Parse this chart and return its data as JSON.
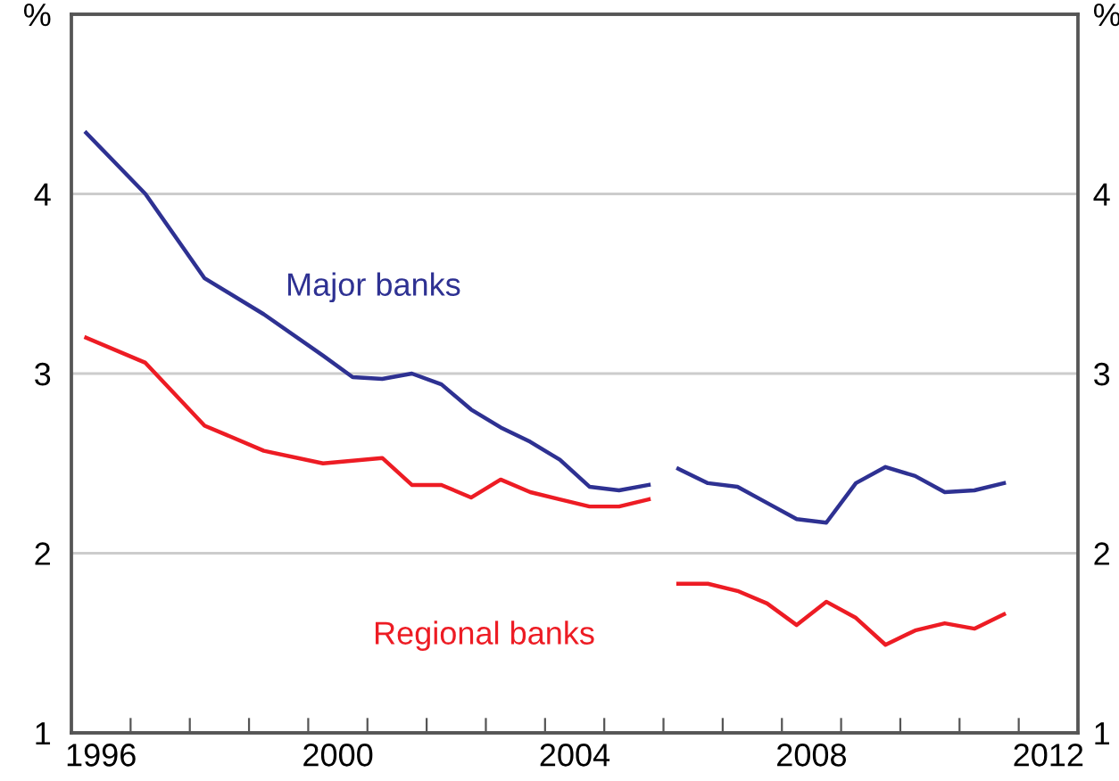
{
  "chart_data": {
    "type": "line",
    "xlim": [
      1996,
      2013
    ],
    "xticks": [
      {
        "value": 1996,
        "label": null
      },
      {
        "value": 1996.5,
        "label": "1996"
      },
      {
        "value": 1997,
        "label": null
      },
      {
        "value": 1998,
        "label": null
      },
      {
        "value": 1999,
        "label": null
      },
      {
        "value": 2000,
        "label": null
      },
      {
        "value": 2000.5,
        "label": "2000"
      },
      {
        "value": 2001,
        "label": null
      },
      {
        "value": 2002,
        "label": null
      },
      {
        "value": 2003,
        "label": null
      },
      {
        "value": 2004,
        "label": null
      },
      {
        "value": 2004.5,
        "label": "2004"
      },
      {
        "value": 2005,
        "label": null
      },
      {
        "value": 2006,
        "label": null
      },
      {
        "value": 2007,
        "label": null
      },
      {
        "value": 2008,
        "label": null
      },
      {
        "value": 2008.5,
        "label": "2008"
      },
      {
        "value": 2009,
        "label": null
      },
      {
        "value": 2010,
        "label": null
      },
      {
        "value": 2011,
        "label": null
      },
      {
        "value": 2012,
        "label": null
      },
      {
        "value": 2012.5,
        "label": "2012"
      },
      {
        "value": 2013,
        "label": null
      }
    ],
    "ylim": [
      1,
      5
    ],
    "yticks": [
      {
        "value": 1,
        "label": "1"
      },
      {
        "value": 2,
        "label": "2"
      },
      {
        "value": 3,
        "label": "3"
      },
      {
        "value": 4,
        "label": "4"
      },
      {
        "value": 5,
        "label": "%"
      }
    ],
    "y2lim": [
      1,
      5
    ],
    "y2ticks": [
      {
        "value": 1,
        "label": "1"
      },
      {
        "value": 2,
        "label": "2"
      },
      {
        "value": 3,
        "label": "3"
      },
      {
        "value": 4,
        "label": "4"
      },
      {
        "value": 5,
        "label": "%"
      }
    ],
    "grid": "y",
    "legend": false,
    "line_style": "solid",
    "marker": "none",
    "series": [
      {
        "name": "Major banks",
        "color": "#2e3192",
        "x": [
          1996.25,
          1997.25,
          1998.25,
          1999.25,
          2000.25,
          2000.75,
          2001.25,
          2001.75,
          2002.25,
          2002.75,
          2003.25,
          2003.75,
          2004.25,
          2004.75,
          2005.25,
          2005.75,
          2006.0,
          2006.25,
          2006.75,
          2007.25,
          2007.75,
          2008.25,
          2008.75,
          2009.25,
          2009.75,
          2010.25,
          2010.75,
          2011.25,
          2011.75
        ],
        "values": [
          4.34,
          4.0,
          3.53,
          3.33,
          3.1,
          2.98,
          2.97,
          3.0,
          2.94,
          2.8,
          2.7,
          2.62,
          2.52,
          2.37,
          2.35,
          2.38,
          null,
          2.47,
          2.39,
          2.37,
          2.28,
          2.19,
          2.17,
          2.39,
          2.48,
          2.43,
          2.34,
          2.35,
          2.39
        ]
      },
      {
        "name": "Regional banks",
        "color": "#ed1c24",
        "x": [
          1996.25,
          1997.25,
          1998.25,
          1999.25,
          2000.25,
          2001.25,
          2001.75,
          2002.25,
          2002.75,
          2003.25,
          2003.75,
          2004.25,
          2004.75,
          2005.25,
          2005.75,
          2006.0,
          2006.25,
          2006.75,
          2007.25,
          2007.75,
          2008.25,
          2008.75,
          2009.25,
          2009.75,
          2010.25,
          2010.75,
          2011.25,
          2011.75
        ],
        "values": [
          3.2,
          3.06,
          2.71,
          2.57,
          2.5,
          2.53,
          2.38,
          2.38,
          2.31,
          2.41,
          2.34,
          2.3,
          2.26,
          2.26,
          2.3,
          null,
          1.83,
          1.83,
          1.79,
          1.72,
          1.6,
          1.73,
          1.64,
          1.49,
          1.57,
          1.61,
          1.58,
          1.66
        ]
      }
    ]
  }
}
